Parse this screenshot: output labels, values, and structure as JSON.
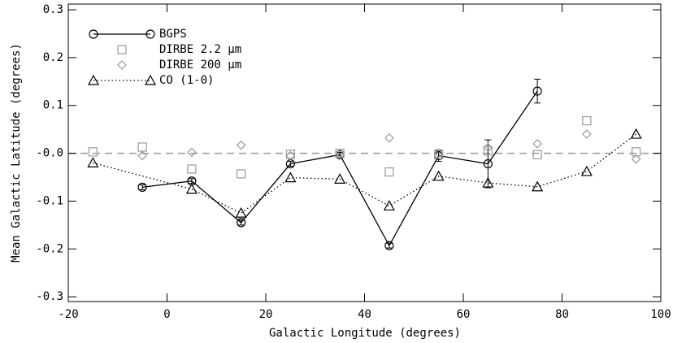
{
  "chart_data": {
    "type": "scatter",
    "xlabel": "Galactic Longitude (degrees)",
    "ylabel": "Mean Galactic Latitude (degrees)",
    "xlim": [
      -20,
      100
    ],
    "xticks": [
      -20,
      0,
      20,
      40,
      60,
      80,
      100
    ],
    "ylim": [
      -0.31,
      0.312
    ],
    "yticks": [
      -0.3,
      -0.2,
      -0.1,
      {
        "value": 0,
        "label": "-0.0"
      },
      0.1,
      0.2,
      0.3
    ],
    "zero_line": true,
    "legend": "top-left",
    "series": [
      {
        "name": "BGPS",
        "color": "#000000",
        "marker": "circle",
        "line": "solid",
        "x": [
          -5,
          5,
          15,
          25,
          35,
          45,
          55,
          65,
          75
        ],
        "values": [
          -0.071,
          -0.058,
          -0.145,
          -0.022,
          -0.003,
          -0.193,
          -0.005,
          -0.022,
          0.13
        ],
        "errors": [
          0.005,
          0.005,
          0.005,
          0.005,
          0.005,
          0.005,
          0.012,
          0.05,
          0.025
        ]
      },
      {
        "name": "DIRBE 2.2 μm",
        "color": "#999999",
        "marker": "square",
        "line": "none",
        "x": [
          -15,
          -5,
          5,
          15,
          25,
          35,
          45,
          55,
          65,
          75,
          85,
          95
        ],
        "values": [
          0.003,
          0.013,
          -0.033,
          -0.043,
          -0.002,
          0.0,
          -0.039,
          -0.003,
          0.005,
          -0.003,
          0.068,
          0.003
        ]
      },
      {
        "name": "DIRBE 200 μm",
        "color": "#999999",
        "marker": "diamond",
        "line": "none",
        "x": [
          -5,
          5,
          15,
          25,
          35,
          45,
          55,
          65,
          75,
          85,
          95
        ],
        "values": [
          -0.005,
          0.002,
          0.017,
          -0.005,
          0.0,
          0.032,
          0.0,
          0.012,
          0.02,
          0.04,
          -0.012
        ]
      },
      {
        "name": "CO (1-0)",
        "color": "#000000",
        "marker": "triangle",
        "line": "dotted",
        "x": [
          -15,
          5,
          15,
          25,
          35,
          45,
          55,
          65,
          75,
          85,
          95
        ],
        "values": [
          -0.02,
          -0.075,
          -0.125,
          -0.051,
          -0.054,
          -0.11,
          -0.048,
          -0.062,
          -0.07,
          -0.038,
          0.04
        ]
      }
    ]
  }
}
